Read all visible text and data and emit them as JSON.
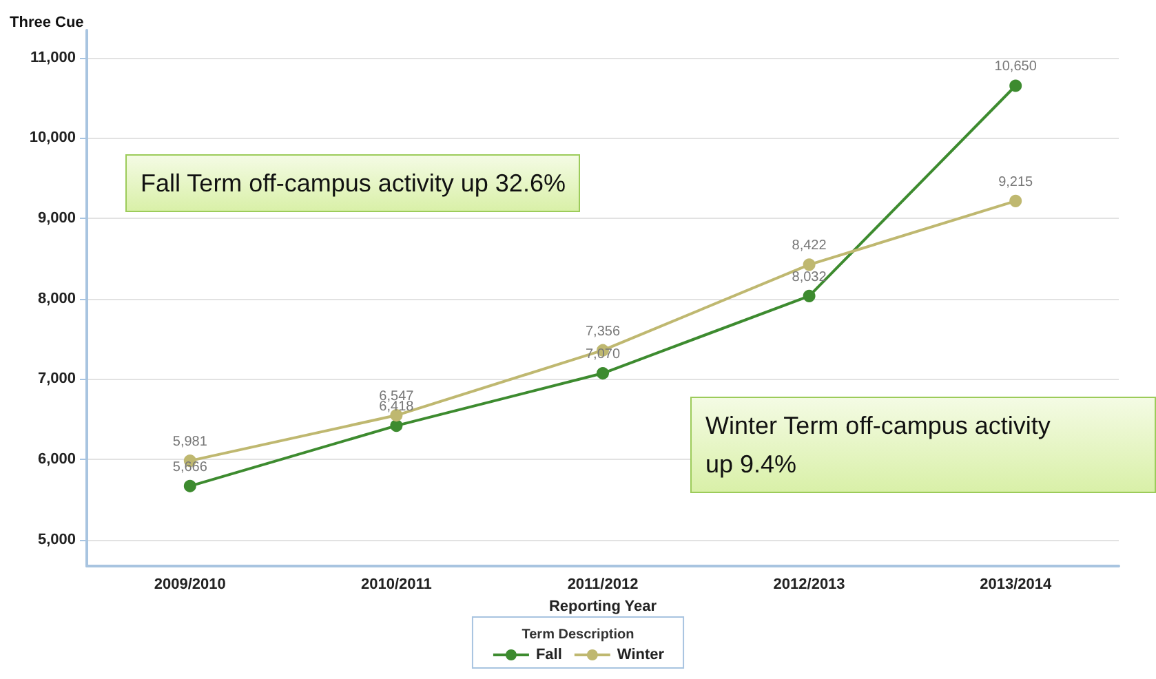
{
  "chart_data": {
    "type": "line",
    "xlabel": "Reporting Year",
    "ylabel": "Three Cue",
    "legend_title": "Term Description",
    "categories": [
      "2009/2010",
      "2010/2011",
      "2011/2012",
      "2012/2013",
      "2013/2014"
    ],
    "series": [
      {
        "name": "Fall",
        "color": "#3d8b2f",
        "values": [
          5666,
          6418,
          7070,
          8032,
          10650
        ],
        "value_labels": [
          "5,666",
          "6,418",
          "7,070",
          "8,032",
          "10,650"
        ]
      },
      {
        "name": "Winter",
        "color": "#bfb870",
        "values": [
          5981,
          6547,
          7356,
          8422,
          9215
        ],
        "value_labels": [
          "5,981",
          "6,547",
          "7,356",
          "8,422",
          "9,215"
        ]
      }
    ],
    "ylim": [
      4670,
      11340
    ],
    "yticks": [
      {
        "value": 5000,
        "label": "5,000"
      },
      {
        "value": 6000,
        "label": "6,000"
      },
      {
        "value": 7000,
        "label": "7,000"
      },
      {
        "value": 8000,
        "label": "8,000"
      },
      {
        "value": 9000,
        "label": "9,000"
      },
      {
        "value": 10000,
        "label": "10,000"
      },
      {
        "value": 11000,
        "label": "11,000"
      }
    ],
    "grid": "y",
    "legend": "bottom",
    "marker": "circle",
    "line_style": "solid",
    "annotations": [
      "Fall Term off-campus activity up 32.6%",
      "Winter Term off-campus activity up 9.4%"
    ]
  }
}
